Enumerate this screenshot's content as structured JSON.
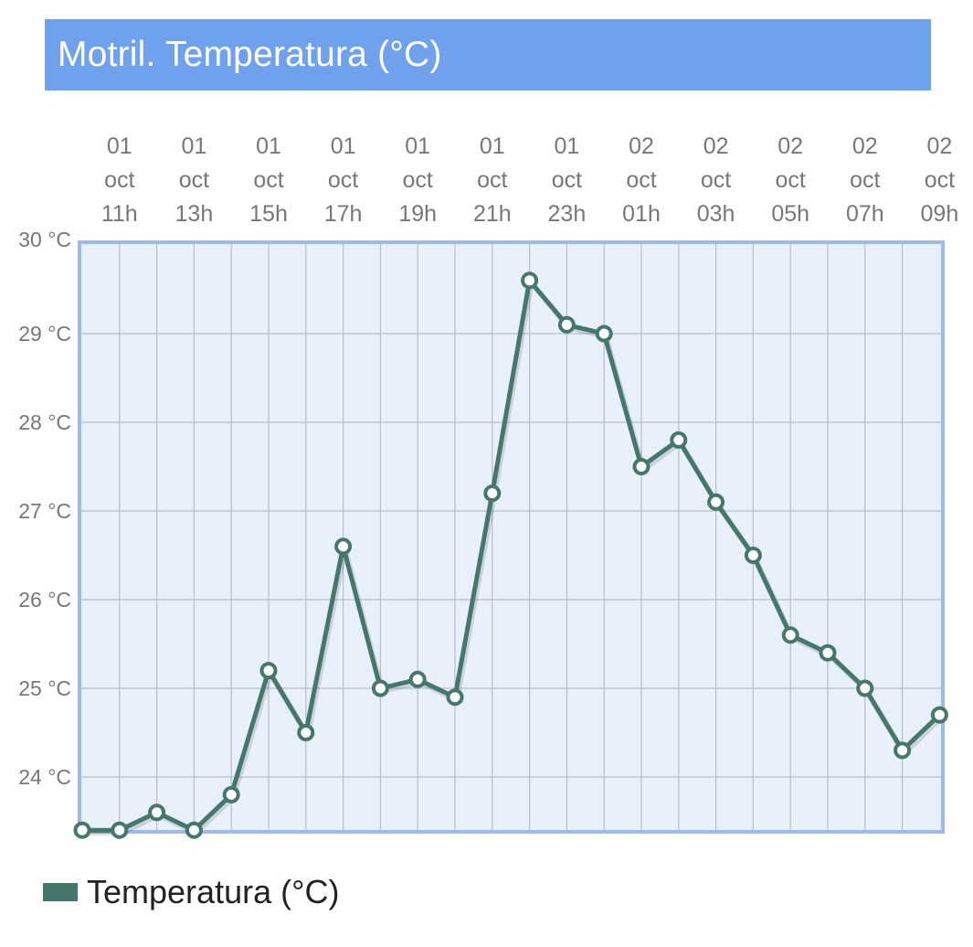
{
  "header": {
    "title": "Motril. Temperatura (°C)"
  },
  "legend": {
    "label": "Temperatura (°C)"
  },
  "colors": {
    "title_bg": "#6fa1ec",
    "plot_bg": "#e8f0fc",
    "plot_border": "#9bbbea",
    "grid": "#b8bdc6",
    "series": "#46776b",
    "marker_fill": "#ffffff",
    "axis_text": "#777777"
  },
  "chart_data": {
    "type": "line",
    "title": "Motril. Temperatura (°C)",
    "x_axis_position": "top",
    "x_tick_labels": [
      [
        "01",
        "oct",
        "11h"
      ],
      [
        "01",
        "oct",
        "13h"
      ],
      [
        "01",
        "oct",
        "15h"
      ],
      [
        "01",
        "oct",
        "17h"
      ],
      [
        "01",
        "oct",
        "19h"
      ],
      [
        "01",
        "oct",
        "21h"
      ],
      [
        "01",
        "oct",
        "23h"
      ],
      [
        "02",
        "oct",
        "01h"
      ],
      [
        "02",
        "oct",
        "03h"
      ],
      [
        "02",
        "oct",
        "05h"
      ],
      [
        "02",
        "oct",
        "07h"
      ],
      [
        "02",
        "oct",
        "09h"
      ]
    ],
    "y_tick_labels": [
      "30 °C",
      "29 °C",
      "28 °C",
      "27 °C",
      "26 °C",
      "25 °C",
      "24 °C"
    ],
    "y_ticks": [
      30,
      29,
      28,
      27,
      26,
      25,
      24
    ],
    "ylim": [
      23.4,
      30
    ],
    "grid": true,
    "legend_position": "bottom-left",
    "series": [
      {
        "name": "Temperatura (°C)",
        "x": [
          "01 oct 10h",
          "01 oct 11h",
          "01 oct 12h",
          "01 oct 13h",
          "01 oct 14h",
          "01 oct 15h",
          "01 oct 16h",
          "01 oct 17h",
          "01 oct 18h",
          "01 oct 19h",
          "01 oct 20h",
          "01 oct 21h",
          "01 oct 22h",
          "01 oct 23h",
          "02 oct 00h",
          "02 oct 01h",
          "02 oct 02h",
          "02 oct 03h",
          "02 oct 04h",
          "02 oct 05h",
          "02 oct 06h",
          "02 oct 07h",
          "02 oct 08h",
          "02 oct 09h"
        ],
        "values": [
          23.4,
          23.4,
          23.6,
          23.4,
          23.8,
          25.2,
          24.5,
          26.6,
          25.0,
          25.1,
          24.9,
          27.2,
          29.6,
          29.1,
          29.0,
          27.5,
          27.8,
          27.1,
          26.5,
          25.6,
          25.4,
          25.0,
          24.3,
          24.7
        ]
      }
    ]
  }
}
